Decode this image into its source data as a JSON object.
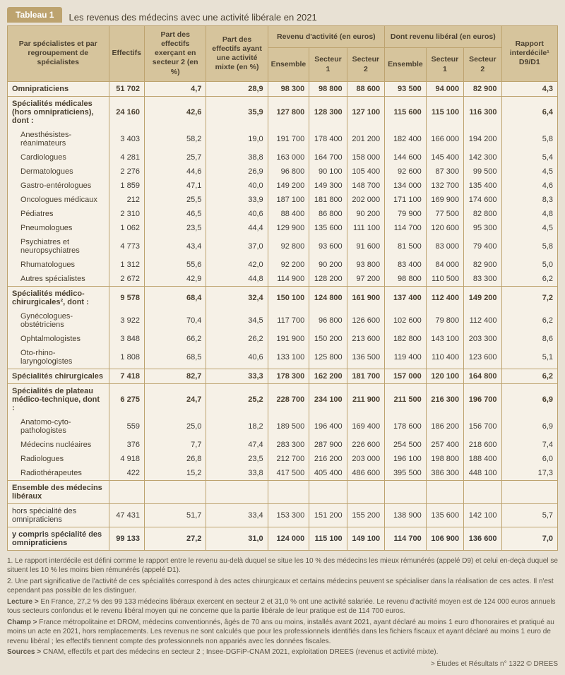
{
  "title_tab": "Tableau 1",
  "title_text": "Les revenus des médecins avec une activité libérale en 2021",
  "columns": {
    "c1": "Par spécialistes\net par regroupement\nde spécialistes",
    "c2": "Effectifs",
    "c3": "Part des effectifs exerçant en secteur 2 (en %)",
    "c4": "Part des effectifs ayant une activité mixte (en %)",
    "g1": "Revenu d'activité (en euros)",
    "g2": "Dont revenu libéral (en euros)",
    "c5": "Ensemble",
    "c6": "Secteur 1",
    "c7": "Secteur 2",
    "c8": "Ensemble",
    "c9": "Secteur 1",
    "c10": "Secteur 2",
    "c11": "Rapport interdécile¹ D9/D1"
  },
  "rows": [
    {
      "cls": "section",
      "label": "Omnipraticiens",
      "v": [
        "51 702",
        "4,7",
        "28,9",
        "98 300",
        "98 800",
        "88 600",
        "93 500",
        "94 000",
        "82 900",
        "4,3"
      ]
    },
    {
      "cls": "section",
      "label": "Spécialités médicales (hors omnipraticiens), dont :",
      "v": [
        "24 160",
        "42,6",
        "35,9",
        "127 800",
        "128 300",
        "127 100",
        "115 600",
        "115 100",
        "116 300",
        "6,4"
      ]
    },
    {
      "cls": "sub",
      "label": "Anesthésistes-réanimateurs",
      "v": [
        "3 403",
        "58,2",
        "19,0",
        "191 700",
        "178 400",
        "201 200",
        "182 400",
        "166 000",
        "194 200",
        "5,8"
      ]
    },
    {
      "cls": "sub",
      "label": "Cardiologues",
      "v": [
        "4 281",
        "25,7",
        "38,8",
        "163 000",
        "164 700",
        "158 000",
        "144 600",
        "145 400",
        "142 300",
        "5,4"
      ]
    },
    {
      "cls": "sub",
      "label": "Dermatologues",
      "v": [
        "2 276",
        "44,6",
        "26,9",
        "96 800",
        "90 100",
        "105 400",
        "92 600",
        "87 300",
        "99 500",
        "4,5"
      ]
    },
    {
      "cls": "sub",
      "label": "Gastro-entérologues",
      "v": [
        "1 859",
        "47,1",
        "40,0",
        "149 200",
        "149 300",
        "148 700",
        "134 000",
        "132 700",
        "135 400",
        "4,6"
      ]
    },
    {
      "cls": "sub",
      "label": "Oncologues médicaux",
      "v": [
        "212",
        "25,5",
        "33,9",
        "187 100",
        "181 800",
        "202 000",
        "171 100",
        "169 900",
        "174 600",
        "8,3"
      ]
    },
    {
      "cls": "sub",
      "label": "Pédiatres",
      "v": [
        "2 310",
        "46,5",
        "40,6",
        "88 400",
        "86 800",
        "90 200",
        "79 900",
        "77 500",
        "82 800",
        "4,8"
      ]
    },
    {
      "cls": "sub",
      "label": "Pneumologues",
      "v": [
        "1 062",
        "23,5",
        "44,4",
        "129 900",
        "135 600",
        "111 100",
        "114 700",
        "120 600",
        "95 300",
        "4,5"
      ]
    },
    {
      "cls": "sub",
      "label": "Psychiatres et neuropsychiatres",
      "v": [
        "4 773",
        "43,4",
        "37,0",
        "92 800",
        "93 600",
        "91 600",
        "81 500",
        "83 000",
        "79 400",
        "5,8"
      ]
    },
    {
      "cls": "sub",
      "label": "Rhumatologues",
      "v": [
        "1 312",
        "55,6",
        "42,0",
        "92 200",
        "90 200",
        "93 800",
        "83 400",
        "84 000",
        "82 900",
        "5,0"
      ]
    },
    {
      "cls": "sub",
      "label": "Autres spécialistes",
      "v": [
        "2 672",
        "42,9",
        "44,8",
        "114 900",
        "128 200",
        "97 200",
        "98 800",
        "110 500",
        "83 300",
        "6,2"
      ]
    },
    {
      "cls": "section",
      "label": "Spécialités médico-chirurgicales², dont :",
      "v": [
        "9 578",
        "68,4",
        "32,4",
        "150 100",
        "124 800",
        "161 900",
        "137 400",
        "112 400",
        "149 200",
        "7,2"
      ]
    },
    {
      "cls": "sub",
      "label": "Gynécologues-obstétriciens",
      "v": [
        "3 922",
        "70,4",
        "34,5",
        "117 700",
        "96 800",
        "126 600",
        "102 600",
        "79 800",
        "112 400",
        "6,2"
      ]
    },
    {
      "cls": "sub",
      "label": "Ophtalmologistes",
      "v": [
        "3 848",
        "66,2",
        "26,2",
        "191 900",
        "150 200",
        "213 600",
        "182 800",
        "143 100",
        "203 300",
        "8,6"
      ]
    },
    {
      "cls": "sub",
      "label": "Oto-rhino-laryngologistes",
      "v": [
        "1 808",
        "68,5",
        "40,6",
        "133 100",
        "125 800",
        "136 500",
        "119 400",
        "110 400",
        "123 600",
        "5,1"
      ]
    },
    {
      "cls": "section",
      "label": "Spécialités chirurgicales",
      "v": [
        "7 418",
        "82,7",
        "33,3",
        "178 300",
        "162 200",
        "181 700",
        "157 000",
        "120 100",
        "164 800",
        "6,2"
      ]
    },
    {
      "cls": "section",
      "label": "Spécialités de plateau médico-technique, dont :",
      "v": [
        "6 275",
        "24,7",
        "25,2",
        "228 700",
        "234 100",
        "211 900",
        "211 500",
        "216 300",
        "196 700",
        "6,9"
      ]
    },
    {
      "cls": "sub",
      "label": "Anatomo-cyto-pathologistes",
      "v": [
        "559",
        "25,0",
        "18,2",
        "189 500",
        "196 400",
        "169 400",
        "178 600",
        "186 200",
        "156 700",
        "6,9"
      ]
    },
    {
      "cls": "sub",
      "label": "Médecins nucléaires",
      "v": [
        "376",
        "7,7",
        "47,4",
        "283 300",
        "287 900",
        "226 600",
        "254 500",
        "257 400",
        "218 600",
        "7,4"
      ]
    },
    {
      "cls": "sub",
      "label": "Radiologues",
      "v": [
        "4 918",
        "26,8",
        "23,5",
        "212 700",
        "216 200",
        "203 000",
        "196 100",
        "198 800",
        "188 400",
        "6,0"
      ]
    },
    {
      "cls": "sub",
      "label": "Radiothérapeutes",
      "v": [
        "422",
        "15,2",
        "33,8",
        "417 500",
        "405 400",
        "486 600",
        "395 500",
        "386 300",
        "448 100",
        "17,3"
      ]
    },
    {
      "cls": "section",
      "label": "Ensemble des médecins libéraux",
      "v": [
        "",
        "",
        "",
        "",
        "",
        "",
        "",
        "",
        "",
        ""
      ]
    },
    {
      "cls": "total",
      "label": "hors spécialité des omnipraticiens",
      "v": [
        "47 431",
        "51,7",
        "33,4",
        "153 300",
        "151 200",
        "155 200",
        "138 900",
        "135 600",
        "142 100",
        "5,7"
      ]
    },
    {
      "cls": "total-bold",
      "label": "y compris spécialité des omnipraticiens",
      "v": [
        "99 133",
        "27,2",
        "31,0",
        "124 000",
        "115 100",
        "149 100",
        "114 700",
        "106 900",
        "136 600",
        "7,0"
      ]
    }
  ],
  "notes": {
    "n1": "1. Le rapport interdécile est défini comme le rapport entre le revenu au-delà duquel se situe les 10 % des médecins les mieux rémunérés (appelé D9) et celui en-deçà duquel se situent les 10 % les moins bien rémunérés (appelé D1).",
    "n2": "2. Une part significative de l'activité de ces spécialités correspond à des actes chirurgicaux et certains médecins peuvent se spécialiser dans la réalisation de ces actes. Il n'est cependant pas possible de les distinguer.",
    "lecture": "Lecture > En France, 27,2 % des 99 133 médecins libéraux exercent en secteur 2 et 31,0 % ont une activité salariée. Le revenu d'activité moyen est de 124 000 euros annuels tous secteurs confondus et le revenu libéral moyen qui ne concerne que la partie libérale de leur pratique est de 114 700 euros.",
    "champ": "Champ > France métropolitaine et DROM, médecins conventionnés, âgés de 70 ans ou moins, installés avant 2021, ayant déclaré au moins 1 euro d'honoraires et pratiqué au moins un acte en 2021, hors remplacements. Les revenus ne sont calculés que pour les professionnels identifiés dans les fichiers fiscaux et ayant déclaré au moins 1 euro de revenu libéral ; les effectifs tiennent compte des professionnels non appariés avec les données fiscales.",
    "sources": "Sources > CNAM, effectifs et part des médecins en secteur 2 ; Insee-DGFiP-CNAM 2021, exploitation DREES (revenus et activité mixte)."
  },
  "credit": "> Études et Résultats n° 1322 © DREES"
}
